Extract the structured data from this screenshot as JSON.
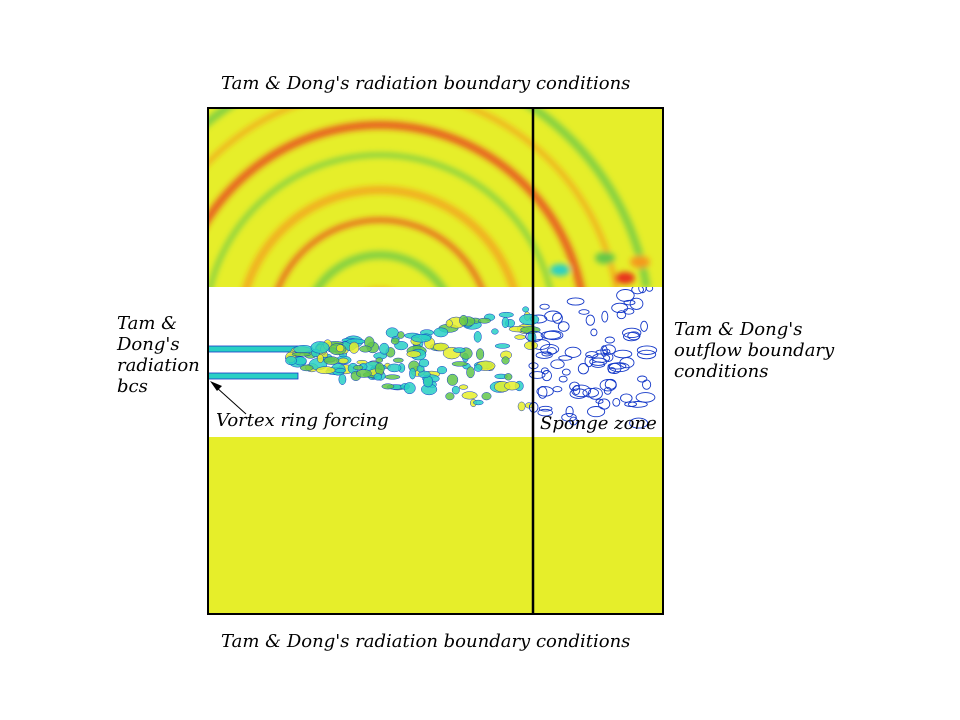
{
  "labels": {
    "top": "Tam & Dong's radiation boundary conditions",
    "bottom": "Tam & Dong's radiation boundary conditions",
    "left": [
      "Tam &",
      "Dong's",
      "radiation",
      "bcs"
    ],
    "right": [
      "Tam & Dong's",
      "outflow boundary",
      "conditions"
    ],
    "vortex": "Vortex ring forcing",
    "sponge": "Sponge zone"
  },
  "colors": {
    "field_base": "#e6ee2a",
    "wave_orange": "#f59a1e",
    "wave_red": "#e8331a",
    "wave_green": "#63c74a",
    "jet_cyan": "#29d0c4",
    "jet_blue": "#1438c8",
    "frame": "#000000"
  }
}
